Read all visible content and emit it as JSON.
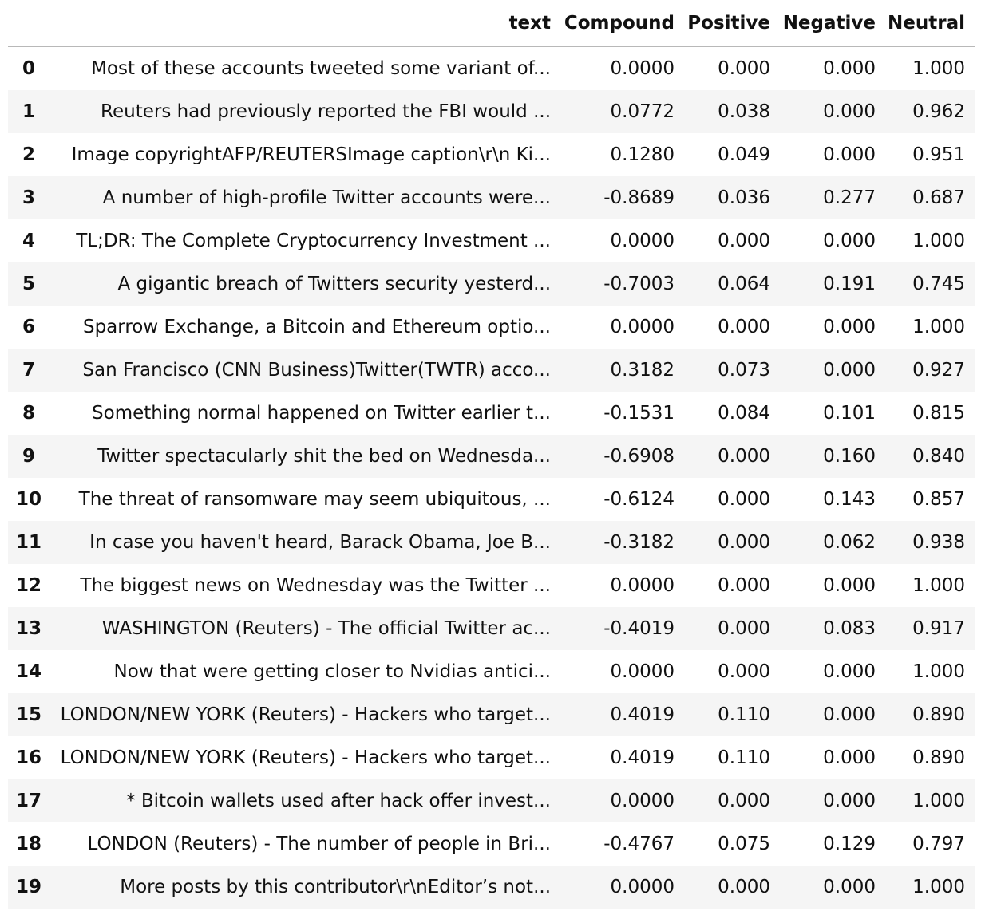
{
  "table": {
    "columns": [
      "",
      "text",
      "Compound",
      "Positive",
      "Negative",
      "Neutral"
    ],
    "rows": [
      [
        "0",
        "Most of these accounts tweeted some variant of...",
        "0.0000",
        "0.000",
        "0.000",
        "1.000"
      ],
      [
        "1",
        "Reuters had previously reported the FBI would ...",
        "0.0772",
        "0.038",
        "0.000",
        "0.962"
      ],
      [
        "2",
        "Image copyrightAFP/REUTERSImage caption\\r\\n Ki...",
        "0.1280",
        "0.049",
        "0.000",
        "0.951"
      ],
      [
        "3",
        "A number of high-profile Twitter accounts were...",
        "-0.8689",
        "0.036",
        "0.277",
        "0.687"
      ],
      [
        "4",
        "TL;DR: The Complete Cryptocurrency Investment ...",
        "0.0000",
        "0.000",
        "0.000",
        "1.000"
      ],
      [
        "5",
        "A gigantic breach of Twitters security yesterd...",
        "-0.7003",
        "0.064",
        "0.191",
        "0.745"
      ],
      [
        "6",
        "Sparrow Exchange, a Bitcoin and Ethereum optio...",
        "0.0000",
        "0.000",
        "0.000",
        "1.000"
      ],
      [
        "7",
        "San Francisco (CNN Business)Twitter(TWTR) acco...",
        "0.3182",
        "0.073",
        "0.000",
        "0.927"
      ],
      [
        "8",
        "Something normal happened on Twitter earlier t...",
        "-0.1531",
        "0.084",
        "0.101",
        "0.815"
      ],
      [
        "9",
        "Twitter spectacularly shit the bed on Wednesda...",
        "-0.6908",
        "0.000",
        "0.160",
        "0.840"
      ],
      [
        "10",
        "The threat of ransomware may seem ubiquitous, ...",
        "-0.6124",
        "0.000",
        "0.143",
        "0.857"
      ],
      [
        "11",
        "In case you haven't heard, Barack Obama, Joe B...",
        "-0.3182",
        "0.000",
        "0.062",
        "0.938"
      ],
      [
        "12",
        "The biggest news on Wednesday was the Twitter ...",
        "0.0000",
        "0.000",
        "0.000",
        "1.000"
      ],
      [
        "13",
        "WASHINGTON (Reuters) - The official Twitter ac...",
        "-0.4019",
        "0.000",
        "0.083",
        "0.917"
      ],
      [
        "14",
        "Now that were getting closer to Nvidias antici...",
        "0.0000",
        "0.000",
        "0.000",
        "1.000"
      ],
      [
        "15",
        "LONDON/NEW YORK (Reuters) - Hackers who target...",
        "0.4019",
        "0.110",
        "0.000",
        "0.890"
      ],
      [
        "16",
        "LONDON/NEW YORK (Reuters) - Hackers who target...",
        "0.4019",
        "0.110",
        "0.000",
        "0.890"
      ],
      [
        "17",
        "* Bitcoin wallets used after hack offer invest...",
        "0.0000",
        "0.000",
        "0.000",
        "1.000"
      ],
      [
        "18",
        "LONDON (Reuters) - The number of people in Bri...",
        "-0.4767",
        "0.075",
        "0.129",
        "0.797"
      ],
      [
        "19",
        "More posts by this contributor\\r\\nEditor’s not...",
        "0.0000",
        "0.000",
        "0.000",
        "1.000"
      ]
    ]
  }
}
